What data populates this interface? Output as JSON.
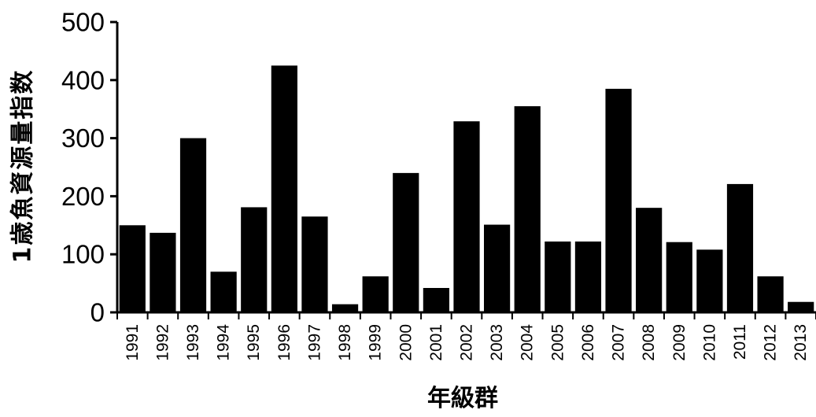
{
  "chart_data": {
    "type": "bar",
    "title": "",
    "xlabel": "年級群",
    "ylabel": "1歳魚資源量指数",
    "categories": [
      "1991",
      "1992",
      "1993",
      "1994",
      "1995",
      "1996",
      "1997",
      "1998",
      "1999",
      "2000",
      "2001",
      "2002",
      "2003",
      "2004",
      "2005",
      "2006",
      "2007",
      "2008",
      "2009",
      "2010",
      "2011",
      "2012",
      "2013"
    ],
    "values": [
      150,
      137,
      300,
      70,
      181,
      425,
      165,
      14,
      62,
      240,
      42,
      329,
      151,
      355,
      122,
      122,
      385,
      180,
      121,
      108,
      221,
      62,
      18
    ],
    "ylim": [
      0,
      500
    ],
    "yticks": [
      0,
      100,
      200,
      300,
      400,
      500
    ],
    "grid": false,
    "legend": "none",
    "bar_color": "#000000",
    "axis_color": "#000000"
  }
}
